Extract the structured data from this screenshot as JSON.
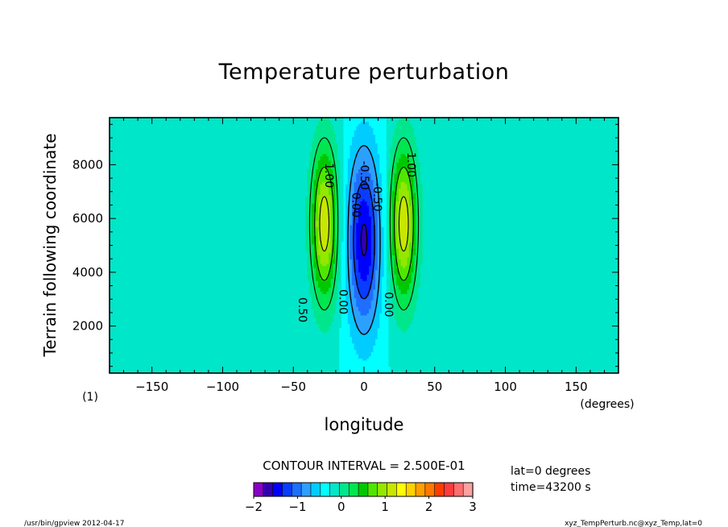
{
  "chart_data": {
    "type": "heatmap",
    "title": "Temperature perturbation",
    "xlabel": "longitude",
    "xunit": "(degrees)",
    "ylabel": "Terrain following coordinate",
    "xlim": [
      -180,
      180
    ],
    "ylim": [
      250,
      9750
    ],
    "xticks": [
      -150,
      -100,
      -50,
      0,
      50,
      100,
      150
    ],
    "yticks": [
      2000,
      4000,
      6000,
      8000
    ],
    "panel_label": "(1)",
    "contour_interval_label": "CONTOUR INTERVAL = 2.500E-01",
    "contour_interval": 0.25,
    "contour_labels": [
      "0.50",
      "1.00",
      "0.00",
      "-0.50"
    ],
    "field_extrema": {
      "warm_lobes_lon": [
        -28,
        28
      ],
      "warm_lobe_max": 1.7,
      "cold_core_lon": 0,
      "cold_core_min": -1.55,
      "max_height": 5800
    },
    "colorbar": {
      "min": -2,
      "max": 3,
      "step": 0.25,
      "tick_labels": [
        "−2",
        "−1",
        "0",
        "1",
        "2",
        "3"
      ],
      "tick_values": [
        -2,
        -1,
        0,
        1,
        2,
        3
      ],
      "colors": [
        "#8a00c8",
        "#3200b0",
        "#0000ff",
        "#0a3cff",
        "#1e6eff",
        "#2da0ff",
        "#00ccff",
        "#00ffff",
        "#00e6c8",
        "#00e68c",
        "#00e650",
        "#00c800",
        "#50e600",
        "#96e600",
        "#c8e600",
        "#ffff00",
        "#ffd200",
        "#ffa000",
        "#ff7800",
        "#ff3c00",
        "#ff3c3c",
        "#ff6e6e",
        "#ffa0a0"
      ]
    }
  },
  "info": {
    "lat": "lat=0  degrees",
    "time": "time=43200 s"
  },
  "footer": {
    "left": "/usr/bin/gpview   2012-04-17",
    "right": "xyz_TempPerturb.nc@xyz_Temp,lat=0"
  }
}
